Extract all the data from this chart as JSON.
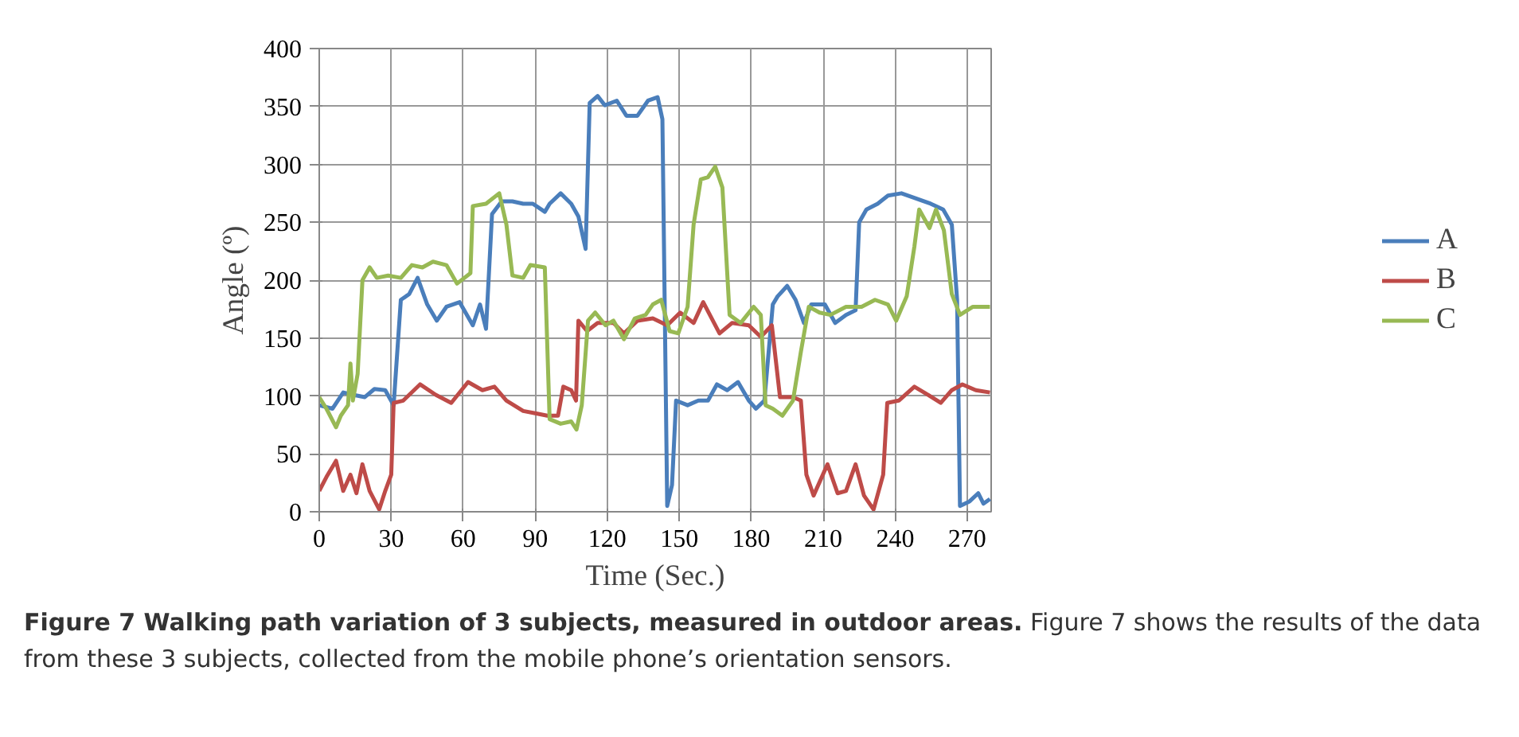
{
  "chart_data": {
    "type": "line",
    "xlabel": "Time (Sec.)",
    "ylabel": "Angle (º)",
    "xlim": [
      0,
      280
    ],
    "xticks": [
      0,
      30,
      60,
      90,
      120,
      150,
      180,
      210,
      240,
      270
    ],
    "ylim": [
      0,
      400
    ],
    "yticks": [
      0,
      50,
      100,
      150,
      200,
      250,
      300,
      350,
      400
    ],
    "grid": true,
    "legend": "right",
    "annotations": [
      "Figure 7 Walking path variation of 3 subjects, measured in outdoor areas.",
      "Figure 7 shows the results of the data from these 3 subjects, collected from the mobile phone’s orientation sensors."
    ],
    "series": [
      {
        "name": "A",
        "color": "#4a7ebb",
        "x": [
          0,
          5.5,
          10,
          14,
          19,
          23,
          27.5,
          31,
          34,
          37.5,
          41,
          45,
          49,
          53,
          58.5,
          64,
          67,
          69.5,
          72,
          76,
          80.5,
          85,
          89,
          94,
          96,
          100.6,
          105,
          108,
          111,
          112.7,
          116,
          119,
          124,
          128,
          132.6,
          137,
          141,
          143,
          145,
          147,
          148.7,
          153.5,
          158,
          162,
          165.7,
          170,
          174.5,
          179,
          182,
          185.5,
          189,
          191,
          195,
          198.5,
          202,
          205,
          210.7,
          215,
          219.5,
          223.5,
          225,
          228,
          232.7,
          237,
          242.6,
          248,
          254.8,
          260,
          263.6,
          265.8,
          267,
          271,
          274.6,
          276.8,
          279.5
        ],
        "values": [
          92,
          89,
          103,
          101,
          99,
          106,
          105,
          92,
          183,
          188,
          202,
          179,
          165,
          177,
          181,
          161,
          179,
          158,
          257,
          268,
          268,
          266,
          266,
          259,
          266,
          275,
          266,
          255,
          227,
          353,
          359,
          351,
          355,
          342,
          342,
          355,
          358,
          339,
          5,
          23,
          96,
          92,
          96,
          96,
          110,
          105,
          112,
          96,
          89,
          96,
          179,
          186,
          195,
          183,
          163,
          179,
          179,
          163,
          170,
          174,
          250,
          261,
          266,
          273,
          275,
          271,
          266,
          261,
          248,
          183,
          5,
          9,
          16,
          7,
          11
        ]
      },
      {
        "name": "B",
        "color": "#be4b48",
        "x": [
          0,
          3,
          7,
          10,
          13,
          15.5,
          18,
          21,
          25,
          27.5,
          30,
          31,
          35,
          42,
          48.5,
          55,
          62,
          68,
          73,
          78,
          85,
          90,
          95,
          99.5,
          101.7,
          105,
          107,
          108,
          111.6,
          116,
          122.6,
          127,
          132.6,
          139,
          145,
          150.4,
          156,
          160,
          166.8,
          172,
          179,
          184,
          188.6,
          192,
          197.4,
          200.7,
          203,
          206,
          211.8,
          216,
          219.5,
          223.5,
          227,
          231,
          235,
          236.7,
          241.5,
          248,
          253.7,
          259,
          263.6,
          268,
          273.6,
          279.5
        ],
        "values": [
          18,
          30,
          44,
          18,
          32,
          16,
          41,
          18,
          2,
          18,
          32,
          94,
          96,
          110,
          101,
          94,
          112,
          105,
          108,
          96,
          87,
          85,
          83,
          83,
          108,
          105,
          96,
          165,
          156,
          163,
          163,
          154,
          165,
          167,
          161,
          172,
          163,
          181,
          154,
          163,
          161,
          151,
          161,
          99,
          99,
          96,
          32,
          14,
          41,
          16,
          18,
          41,
          14,
          2,
          32,
          94,
          96,
          108,
          101,
          94,
          105,
          110,
          105,
          103
        ]
      },
      {
        "name": "C",
        "color": "#98b954",
        "x": [
          0,
          3,
          7,
          9,
          12,
          13,
          14,
          16,
          18,
          21,
          24,
          28.7,
          34,
          38.6,
          43,
          47.4,
          53,
          57.4,
          63,
          64,
          69.5,
          75,
          78,
          80.5,
          85,
          88,
          94,
          96,
          100.6,
          105,
          107.2,
          109.4,
          112,
          115,
          119.3,
          122.6,
          127,
          131.5,
          136,
          139,
          142.5,
          146,
          149.6,
          153.5,
          156,
          159,
          162,
          165,
          168,
          171,
          175.6,
          181,
          184,
          186,
          189,
          193,
          197.4,
          200.7,
          204,
          208.5,
          213,
          219.5,
          226,
          231.6,
          237,
          240.4,
          244.8,
          248,
          250,
          254.3,
          257,
          260.3,
          263.6,
          267,
          272.4,
          279.5
        ],
        "values": [
          99,
          89,
          73,
          83,
          92,
          128,
          96,
          119,
          200,
          211,
          202,
          204,
          202,
          213,
          211,
          216,
          213,
          197,
          206,
          264,
          266,
          275,
          248,
          204,
          202,
          213,
          211,
          80,
          76,
          78,
          71,
          92,
          165,
          172,
          161,
          165,
          149,
          167,
          170,
          179,
          183,
          156,
          154,
          177,
          248,
          287,
          289,
          298,
          280,
          170,
          163,
          177,
          170,
          92,
          89,
          83,
          96,
          138,
          177,
          172,
          170,
          177,
          177,
          183,
          179,
          165,
          186,
          229,
          261,
          245,
          261,
          243,
          188,
          170,
          177,
          177
        ]
      }
    ]
  }
}
